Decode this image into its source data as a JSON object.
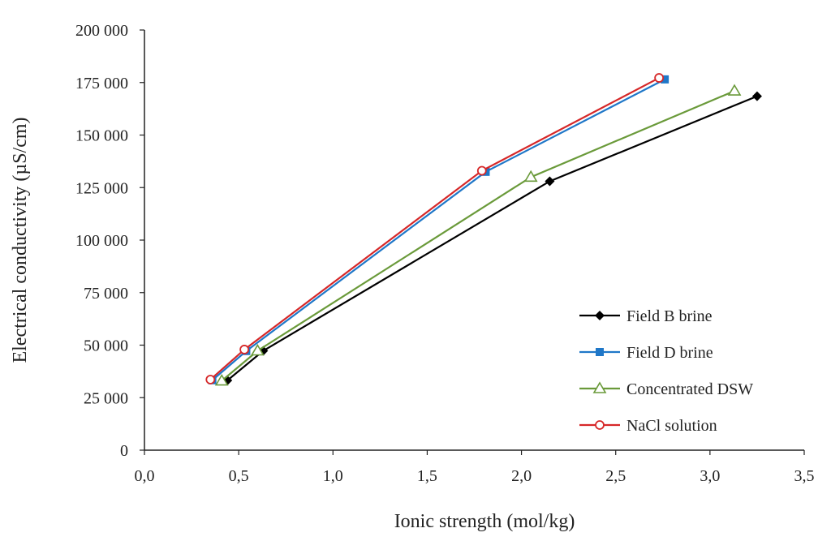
{
  "chart_data": {
    "type": "line",
    "title": "",
    "xlabel": "Ionic strength (mol/kg)",
    "ylabel": "Electrical conductivity (µS/cm)",
    "xlim": [
      0,
      3.5
    ],
    "ylim": [
      0,
      200000
    ],
    "xticks": [
      0,
      0.5,
      1.0,
      1.5,
      2.0,
      2.5,
      3.0,
      3.5
    ],
    "xtick_labels": [
      "0,0",
      "0,5",
      "1,0",
      "1,5",
      "2,0",
      "2,5",
      "3,0",
      "3,5"
    ],
    "yticks": [
      0,
      25000,
      50000,
      75000,
      100000,
      125000,
      150000,
      175000,
      200000
    ],
    "ytick_labels": [
      "0",
      "25 000",
      "50 000",
      "75 000",
      "100 000",
      "125 000",
      "150 000",
      "175 000",
      "200 000"
    ],
    "grid": false,
    "legend_position": "bottom-right",
    "series": [
      {
        "name": "Field B brine",
        "color": "#000000",
        "marker": "diamond-filled",
        "x": [
          0.44,
          0.63,
          2.15,
          3.25
        ],
        "y": [
          33200,
          47300,
          128000,
          168500
        ]
      },
      {
        "name": "Field D brine",
        "color": "#1f77c8",
        "marker": "square-filled",
        "x": [
          0.36,
          0.54,
          1.81,
          2.76
        ],
        "y": [
          33300,
          47200,
          132500,
          176500
        ]
      },
      {
        "name": "Concentrated DSW",
        "color": "#6a9a3a",
        "marker": "triangle-open",
        "x": [
          0.41,
          0.6,
          2.05,
          3.13
        ],
        "y": [
          33000,
          47300,
          130000,
          171000
        ]
      },
      {
        "name": "NaCl solution",
        "color": "#d62728",
        "marker": "circle-open",
        "x": [
          0.35,
          0.53,
          1.79,
          2.73
        ],
        "y": [
          33600,
          47900,
          133000,
          177200
        ]
      }
    ]
  }
}
